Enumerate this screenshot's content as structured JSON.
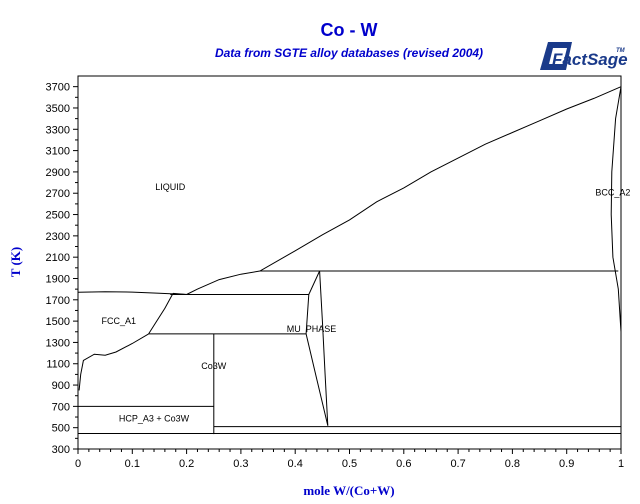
{
  "chart_data": {
    "type": "line",
    "title": "Co - W",
    "subtitle": "Data from SGTE alloy databases (revised 2004)",
    "xlabel": "mole W/(Co+W)",
    "ylabel": "T (K)",
    "xlim": [
      0,
      1
    ],
    "ylim": [
      300,
      3800
    ],
    "x_ticks": [
      "0",
      "0.1",
      "0.2",
      "0.3",
      "0.4",
      "0.5",
      "0.6",
      "0.7",
      "0.8",
      "0.9",
      "1"
    ],
    "x_tick_values": [
      0,
      0.1,
      0.2,
      0.3,
      0.4,
      0.5,
      0.6,
      0.7,
      0.8,
      0.9,
      1.0
    ],
    "y_ticks": [
      "300",
      "500",
      "700",
      "900",
      "1100",
      "1300",
      "1500",
      "1700",
      "1900",
      "2100",
      "2300",
      "2500",
      "2700",
      "2900",
      "3100",
      "3300",
      "3500",
      "3700"
    ],
    "y_tick_values": [
      300,
      500,
      700,
      900,
      1100,
      1300,
      1500,
      1700,
      1900,
      2100,
      2300,
      2500,
      2700,
      2900,
      3100,
      3300,
      3500,
      3700
    ],
    "grid": false,
    "logo": {
      "text": "FactSage",
      "mark": "TM"
    },
    "region_labels": [
      {
        "text": "LIQUID",
        "x": 0.17,
        "y": 2730
      },
      {
        "text": "BCC_A2",
        "x": 0.985,
        "y": 2680
      },
      {
        "text": "FCC_A1",
        "x": 0.075,
        "y": 1475
      },
      {
        "text": "MU_PHASE",
        "x": 0.43,
        "y": 1400
      },
      {
        "text": "Co3W",
        "x": 0.25,
        "y": 1050
      },
      {
        "text": "HCP_A3 + Co3W",
        "x": 0.14,
        "y": 560
      }
    ],
    "series": [
      {
        "points": [
          [
            0,
            1770
          ],
          [
            0.05,
            1775
          ],
          [
            0.1,
            1772
          ],
          [
            0.15,
            1762
          ],
          [
            0.2,
            1750
          ]
        ]
      },
      {
        "points": [
          [
            0.2,
            1750
          ],
          [
            0.22,
            1800
          ],
          [
            0.26,
            1890
          ],
          [
            0.3,
            1940
          ],
          [
            0.335,
            1970
          ],
          [
            0.4,
            2160
          ],
          [
            0.45,
            2310
          ],
          [
            0.5,
            2450
          ],
          [
            0.55,
            2620
          ],
          [
            0.6,
            2750
          ],
          [
            0.65,
            2900
          ],
          [
            0.7,
            3030
          ],
          [
            0.75,
            3160
          ],
          [
            0.8,
            3270
          ],
          [
            0.85,
            3380
          ],
          [
            0.9,
            3490
          ],
          [
            0.95,
            3590
          ],
          [
            1.0,
            3700
          ]
        ]
      },
      {
        "points": [
          [
            0.175,
            1760
          ],
          [
            0.2,
            1750
          ]
        ]
      },
      {
        "points": [
          [
            0.175,
            1760
          ],
          [
            0.16,
            1620
          ],
          [
            0.145,
            1500
          ],
          [
            0.13,
            1380
          ]
        ]
      },
      {
        "points": [
          [
            0.13,
            1380
          ],
          [
            0.1,
            1290
          ],
          [
            0.07,
            1210
          ],
          [
            0.05,
            1180
          ],
          [
            0.03,
            1190
          ],
          [
            0.01,
            1130
          ],
          [
            0.005,
            1000
          ],
          [
            0.002,
            850
          ]
        ]
      },
      {
        "points": [
          [
            0.17,
            1750
          ],
          [
            0.425,
            1750
          ]
        ]
      },
      {
        "points": [
          [
            0.13,
            1380
          ],
          [
            0.42,
            1380
          ]
        ]
      },
      {
        "points": [
          [
            0.335,
            1970
          ],
          [
            0.995,
            1970
          ]
        ]
      },
      {
        "points": [
          [
            0.445,
            1970
          ],
          [
            0.425,
            1750
          ],
          [
            0.42,
            1380
          ]
        ]
      },
      {
        "points": [
          [
            0.445,
            1970
          ],
          [
            0.45,
            1500
          ],
          [
            0.455,
            1000
          ],
          [
            0.46,
            520
          ]
        ]
      },
      {
        "points": [
          [
            0.42,
            1380
          ],
          [
            0.44,
            950
          ],
          [
            0.46,
            520
          ]
        ]
      },
      {
        "points": [
          [
            0.25,
            1380
          ],
          [
            0.25,
            440
          ]
        ]
      },
      {
        "points": [
          [
            0,
            700
          ],
          [
            0.25,
            700
          ]
        ]
      },
      {
        "points": [
          [
            0.25,
            510
          ],
          [
            1.0,
            510
          ]
        ]
      },
      {
        "points": [
          [
            0,
            445
          ],
          [
            1.0,
            445
          ]
        ]
      },
      {
        "points": [
          [
            1.0,
            3700
          ],
          [
            0.99,
            3400
          ],
          [
            0.983,
            2900
          ],
          [
            0.982,
            2500
          ],
          [
            0.985,
            2100
          ],
          [
            0.995,
            1800
          ],
          [
            1.0,
            1400
          ]
        ]
      },
      {
        "points": [
          [
            1.0,
            3700
          ],
          [
            1.0,
            1200
          ]
        ]
      }
    ]
  }
}
